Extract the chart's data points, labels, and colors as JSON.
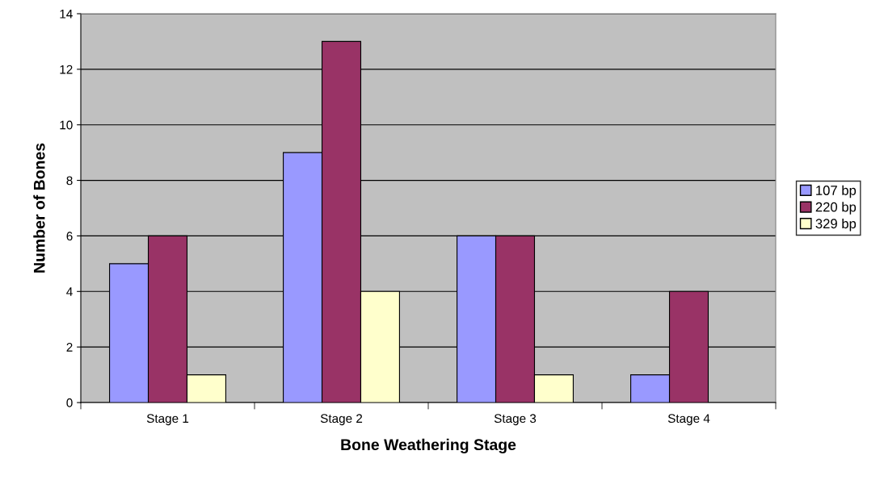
{
  "chart_data": {
    "type": "bar",
    "xlabel": "Bone Weathering Stage",
    "ylabel": "Number of Bones",
    "categories": [
      "Stage 1",
      "Stage 2",
      "Stage 3",
      "Stage 4"
    ],
    "series": [
      {
        "name": "107 bp",
        "color": "#9999ff",
        "values": [
          5,
          9,
          6,
          1
        ]
      },
      {
        "name": "220 bp",
        "color": "#993366",
        "values": [
          6,
          13,
          6,
          4
        ]
      },
      {
        "name": "329 bp",
        "color": "#ffffcc",
        "values": [
          1,
          4,
          1,
          null
        ]
      }
    ],
    "ylim": [
      0,
      14
    ],
    "yticks": [
      0,
      2,
      4,
      6,
      8,
      10,
      12,
      14
    ],
    "grid": "y",
    "legend": "right"
  }
}
